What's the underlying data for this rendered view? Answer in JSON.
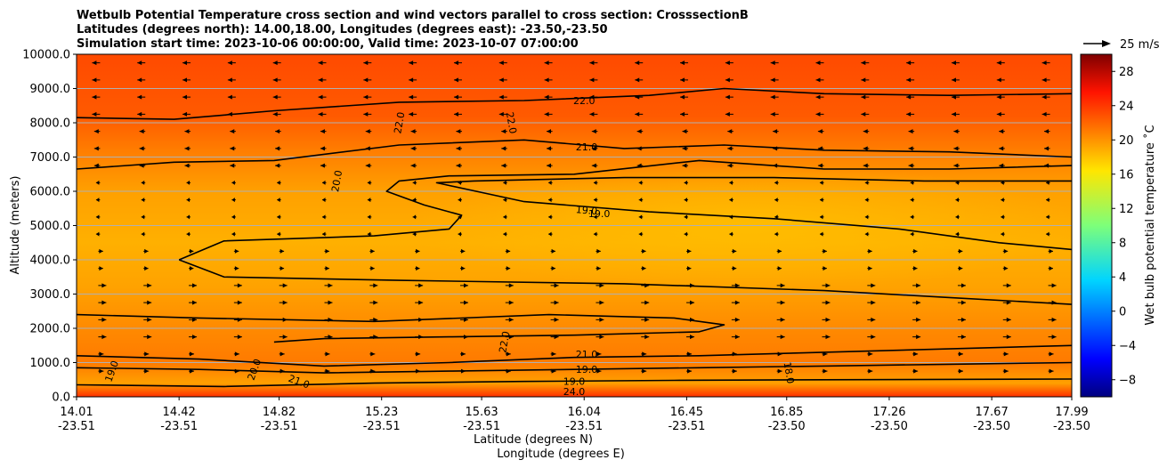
{
  "chart_data": {
    "type": "heatmap",
    "title_lines": [
      "Wetbulb Potential Temperature cross section and wind vectors parallel to cross section: CrosssectionB",
      "Latitudes (degrees north): 14.00,18.00, Longitudes (degrees east): -23.50,-23.50",
      "Simulation start time: 2023-10-06 00:00:00, Valid time: 2023-10-07 07:00:00"
    ],
    "xlabel_lines": [
      "Latitude (degrees N)",
      "Longitude (degrees E)"
    ],
    "ylabel": "Altitude (meters)",
    "x_ticks": [
      {
        "lat": 14.01,
        "lat_label": "14.01",
        "lon_label": "-23.51"
      },
      {
        "lat": 14.42,
        "lat_label": "14.42",
        "lon_label": "-23.51"
      },
      {
        "lat": 14.82,
        "lat_label": "14.82",
        "lon_label": "-23.51"
      },
      {
        "lat": 15.23,
        "lat_label": "15.23",
        "lon_label": "-23.51"
      },
      {
        "lat": 15.63,
        "lat_label": "15.63",
        "lon_label": "-23.51"
      },
      {
        "lat": 16.04,
        "lat_label": "16.04",
        "lon_label": "-23.51"
      },
      {
        "lat": 16.45,
        "lat_label": "16.45",
        "lon_label": "-23.51"
      },
      {
        "lat": 16.85,
        "lat_label": "16.85",
        "lon_label": "-23.50"
      },
      {
        "lat": 17.26,
        "lat_label": "17.26",
        "lon_label": "-23.50"
      },
      {
        "lat": 17.67,
        "lat_label": "17.67",
        "lon_label": "-23.50"
      },
      {
        "lat": 17.99,
        "lat_label": "17.99",
        "lon_label": "-23.50"
      }
    ],
    "xlim": [
      14.01,
      17.99
    ],
    "y_ticks": [
      0,
      1000,
      2000,
      3000,
      4000,
      5000,
      6000,
      7000,
      8000,
      9000,
      10000
    ],
    "y_tick_labels": [
      "0.0",
      "1000.0",
      "2000.0",
      "3000.0",
      "4000.0",
      "5000.0",
      "6000.0",
      "7000.0",
      "8000.0",
      "9000.0",
      "10000.0"
    ],
    "ylim": [
      0,
      10000
    ],
    "grid": "horizontal",
    "colorbar": {
      "label": "Wet bulb potential temperature ˚C",
      "range": [
        -10,
        30
      ],
      "ticks": [
        -8,
        -4,
        0,
        4,
        8,
        12,
        16,
        20,
        24,
        28
      ],
      "tick_labels": [
        "−8",
        "−4",
        "0",
        "4",
        "8",
        "12",
        "16",
        "20",
        "24",
        "28"
      ],
      "colormap": "jet"
    },
    "quiver_key": {
      "label": "25 m/s",
      "speed": 25
    },
    "contour_lines": [
      {
        "level": 22.0,
        "points": [
          [
            14.01,
            8150
          ],
          [
            14.4,
            8100
          ],
          [
            14.8,
            8350
          ],
          [
            15.3,
            8600
          ],
          [
            15.8,
            8650
          ],
          [
            16.3,
            8800
          ],
          [
            16.6,
            9000
          ],
          [
            17.0,
            8850
          ],
          [
            17.5,
            8800
          ],
          [
            17.99,
            8850
          ]
        ]
      },
      {
        "level": 21.0,
        "points": [
          [
            14.01,
            6650
          ],
          [
            14.4,
            6850
          ],
          [
            14.8,
            6900
          ],
          [
            15.3,
            7350
          ],
          [
            15.8,
            7500
          ],
          [
            16.2,
            7250
          ],
          [
            16.6,
            7350
          ],
          [
            17.0,
            7200
          ],
          [
            17.5,
            7150
          ],
          [
            17.99,
            7000
          ]
        ]
      },
      {
        "level": 20.0,
        "points": [
          [
            14.42,
            4000
          ],
          [
            14.6,
            4550
          ],
          [
            15.2,
            4700
          ],
          [
            15.5,
            4900
          ],
          [
            15.55,
            5300
          ],
          [
            15.4,
            5600
          ],
          [
            15.25,
            6000
          ],
          [
            15.3,
            6300
          ],
          [
            15.5,
            6450
          ],
          [
            16.0,
            6500
          ],
          [
            16.5,
            6900
          ],
          [
            17.0,
            6650
          ],
          [
            17.5,
            6650
          ],
          [
            17.99,
            6750
          ]
        ]
      },
      {
        "level": 19.0,
        "points": [
          [
            17.99,
            6300
          ],
          [
            17.4,
            6300
          ],
          [
            16.8,
            6400
          ],
          [
            16.2,
            6400
          ],
          [
            15.6,
            6300
          ],
          [
            15.45,
            6250
          ],
          [
            15.8,
            5700
          ],
          [
            16.3,
            5400
          ],
          [
            16.8,
            5200
          ],
          [
            17.3,
            4900
          ],
          [
            17.7,
            4500
          ],
          [
            17.99,
            4300
          ]
        ]
      },
      {
        "level": 19.0,
        "points": [
          [
            14.42,
            4000
          ],
          [
            14.6,
            3500
          ],
          [
            15.3,
            3400
          ],
          [
            16.2,
            3300
          ],
          [
            17.0,
            3100
          ],
          [
            17.5,
            2900
          ],
          [
            17.99,
            2700
          ]
        ]
      },
      {
        "level": 22.0,
        "points": [
          [
            14.01,
            2400
          ],
          [
            14.5,
            2300
          ],
          [
            15.2,
            2200
          ],
          [
            15.9,
            2400
          ],
          [
            16.4,
            2300
          ],
          [
            16.6,
            2100
          ],
          [
            16.5,
            1900
          ],
          [
            16.0,
            1800
          ],
          [
            15.5,
            1750
          ],
          [
            15.0,
            1700
          ],
          [
            14.8,
            1600
          ]
        ]
      },
      {
        "level": 21.0,
        "points": [
          [
            14.01,
            1200
          ],
          [
            14.5,
            1100
          ],
          [
            15.0,
            900
          ],
          [
            15.5,
            1000
          ],
          [
            16.0,
            1150
          ],
          [
            16.5,
            1200
          ],
          [
            17.0,
            1300
          ],
          [
            17.5,
            1400
          ],
          [
            17.99,
            1500
          ]
        ]
      },
      {
        "level": 19.0,
        "points": [
          [
            14.01,
            850
          ],
          [
            14.5,
            800
          ],
          [
            15.0,
            700
          ],
          [
            15.5,
            750
          ],
          [
            16.0,
            800
          ],
          [
            16.5,
            850
          ],
          [
            17.0,
            900
          ],
          [
            17.5,
            950
          ],
          [
            17.99,
            1000
          ]
        ]
      },
      {
        "level": 19.0,
        "points": [
          [
            14.01,
            350
          ],
          [
            14.6,
            300
          ],
          [
            15.2,
            400
          ],
          [
            15.8,
            450
          ],
          [
            16.4,
            480
          ],
          [
            17.0,
            500
          ],
          [
            17.99,
            520
          ]
        ]
      }
    ],
    "contour_labels": [
      {
        "text": "22.0",
        "lat": 16.04,
        "alt": 8650,
        "angle": 0
      },
      {
        "text": "21.0",
        "lat": 16.05,
        "alt": 7300,
        "angle": 0
      },
      {
        "text": "22.0",
        "lat": 15.3,
        "alt": 8000,
        "angle": -80
      },
      {
        "text": "22.0",
        "lat": 15.75,
        "alt": 8000,
        "angle": 80
      },
      {
        "text": "20.0",
        "lat": 15.05,
        "alt": 6300,
        "angle": -80
      },
      {
        "text": "19.0",
        "lat": 16.05,
        "alt": 5450,
        "angle": 5
      },
      {
        "text": "19.0",
        "lat": 16.1,
        "alt": 5350,
        "angle": 0
      },
      {
        "text": "22.0",
        "lat": 15.72,
        "alt": 1600,
        "angle": -80
      },
      {
        "text": "21.0",
        "lat": 16.05,
        "alt": 1250,
        "angle": 0
      },
      {
        "text": "19.0",
        "lat": 16.05,
        "alt": 800,
        "angle": 0
      },
      {
        "text": "19.0",
        "lat": 16.0,
        "alt": 450,
        "angle": 0
      },
      {
        "text": "18.0",
        "lat": 16.86,
        "alt": 700,
        "angle": 80
      },
      {
        "text": "20.0",
        "lat": 14.72,
        "alt": 800,
        "angle": -70
      },
      {
        "text": "19.0",
        "lat": 14.15,
        "alt": 750,
        "angle": -70
      },
      {
        "text": "21.0",
        "lat": 14.9,
        "alt": 450,
        "angle": 20
      },
      {
        "text": "24.0",
        "lat": 16.0,
        "alt": 150,
        "angle": 0
      }
    ],
    "wind_pattern": [
      {
        "alt_min": 8000,
        "alt_max": 10000,
        "direction": "left",
        "strength": 1.0
      },
      {
        "alt_min": 6500,
        "alt_max": 8000,
        "direction": "left",
        "strength": 0.6
      },
      {
        "alt_min": 4500,
        "alt_max": 6500,
        "direction": "left",
        "strength": 0.25
      },
      {
        "alt_min": 3500,
        "alt_max": 4500,
        "direction": "right",
        "strength": 0.4
      },
      {
        "alt_min": 1500,
        "alt_max": 3500,
        "direction": "right",
        "strength": 1.0
      },
      {
        "alt_min": 600,
        "alt_max": 1500,
        "direction": "right",
        "strength": 0.5
      }
    ]
  }
}
